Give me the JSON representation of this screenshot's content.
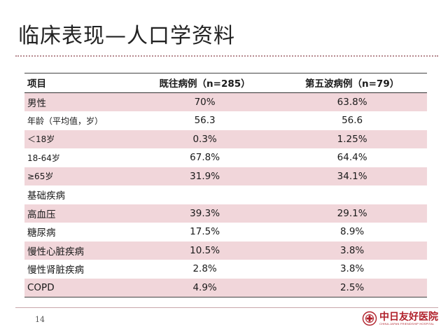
{
  "slide": {
    "title": "临床表现—人口学资料",
    "page_number": "14"
  },
  "table": {
    "headers": [
      "项目",
      "既往病例（n=285）",
      "第五波病例（n=79）"
    ],
    "rows": [
      {
        "label": "男性",
        "prior": "70%",
        "fifth": "63.8%"
      },
      {
        "label": "年龄（平均值，岁）",
        "prior": "56.3",
        "fifth": "56.6"
      },
      {
        "label": "＜18岁",
        "prior": "0.3%",
        "fifth": "1.25%"
      },
      {
        "label": "18-64岁",
        "prior": "67.8%",
        "fifth": "64.4%"
      },
      {
        "label": "≥65岁",
        "prior": "31.9%",
        "fifth": "34.1%"
      },
      {
        "label": "基础疾病",
        "prior": "",
        "fifth": ""
      },
      {
        "label": "高血压",
        "prior": "39.3%",
        "fifth": "29.1%"
      },
      {
        "label": "糖尿病",
        "prior": "17.5%",
        "fifth": "8.9%"
      },
      {
        "label": "慢性心脏疾病",
        "prior": "10.5%",
        "fifth": "3.8%"
      },
      {
        "label": "慢性肾脏疾病",
        "prior": "2.8%",
        "fifth": "3.8%"
      },
      {
        "label": "COPD",
        "prior": "4.9%",
        "fifth": "2.5%"
      }
    ]
  },
  "logo": {
    "name": "中日友好医院",
    "subtitle": "CHINA-JAPAN FRIENDSHIP HOSPITAL",
    "icon": "hospital-emblem-icon"
  },
  "colors": {
    "band": "#f1d6da",
    "logo_red": "#b0202a"
  }
}
